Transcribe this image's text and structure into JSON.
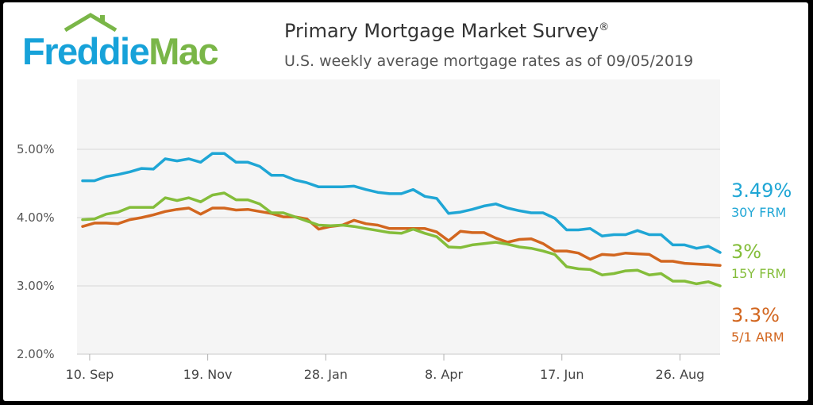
{
  "logo": {
    "part1": "Freddie",
    "part2": "Mac"
  },
  "header": {
    "title": "Primary Mortgage Market Survey",
    "title_mark": "®",
    "subtitle": "U.S. weekly average mortgage rates as of 09/05/2019"
  },
  "colors": {
    "blue": "#1fa6d5",
    "green": "#84bd3a",
    "orange": "#d2661f",
    "logo_blue": "#17a2d9",
    "logo_green": "#7ab648"
  },
  "chart_data": {
    "type": "line",
    "title": "Primary Mortgage Market Survey",
    "subtitle": "U.S. weekly average mortgage rates as of 09/05/2019",
    "xlabel": "",
    "ylabel": "",
    "ylim": [
      2.0,
      5.0
    ],
    "y_ticks": [
      "2.00%",
      "3.00%",
      "4.00%",
      "5.00%"
    ],
    "x_ticks": [
      "10. Sep",
      "19. Nov",
      "28. Jan",
      "8. Apr",
      "17. Jun",
      "26. Aug"
    ],
    "grid": true,
    "legend": "right-end labels",
    "x_start": "2018-09-06",
    "x_step": "weekly",
    "series": [
      {
        "name": "30Y FRM",
        "end_label": "3.49%",
        "color": "#1fa6d5",
        "values": [
          4.54,
          4.54,
          4.6,
          4.63,
          4.67,
          4.72,
          4.71,
          4.86,
          4.83,
          4.86,
          4.81,
          4.94,
          4.94,
          4.81,
          4.81,
          4.75,
          4.62,
          4.62,
          4.55,
          4.51,
          4.45,
          4.45,
          4.45,
          4.46,
          4.41,
          4.37,
          4.35,
          4.35,
          4.41,
          4.31,
          4.28,
          4.06,
          4.08,
          4.12,
          4.17,
          4.2,
          4.14,
          4.1,
          4.07,
          4.07,
          3.99,
          3.82,
          3.82,
          3.84,
          3.73,
          3.75,
          3.75,
          3.81,
          3.75,
          3.75,
          3.6,
          3.6,
          3.55,
          3.58,
          3.49
        ]
      },
      {
        "name": "15Y FRM",
        "end_label": "3%",
        "color": "#84bd3a",
        "values": [
          3.97,
          3.98,
          4.05,
          4.08,
          4.15,
          4.15,
          4.15,
          4.29,
          4.25,
          4.29,
          4.23,
          4.33,
          4.36,
          4.26,
          4.26,
          4.2,
          4.07,
          4.07,
          4.01,
          3.95,
          3.89,
          3.88,
          3.89,
          3.87,
          3.84,
          3.81,
          3.78,
          3.77,
          3.83,
          3.77,
          3.72,
          3.57,
          3.56,
          3.6,
          3.62,
          3.64,
          3.61,
          3.57,
          3.55,
          3.51,
          3.46,
          3.28,
          3.25,
          3.24,
          3.16,
          3.18,
          3.22,
          3.23,
          3.16,
          3.18,
          3.07,
          3.07,
          3.03,
          3.06,
          3.0
        ]
      },
      {
        "name": "5/1 ARM",
        "end_label": "3.3%",
        "color": "#d2661f",
        "values": [
          3.87,
          3.92,
          3.92,
          3.91,
          3.97,
          4.0,
          4.04,
          4.09,
          4.12,
          4.14,
          4.05,
          4.14,
          4.14,
          4.11,
          4.12,
          4.09,
          4.06,
          4.01,
          4.01,
          3.98,
          3.83,
          3.87,
          3.89,
          3.96,
          3.91,
          3.89,
          3.84,
          3.84,
          3.84,
          3.84,
          3.79,
          3.66,
          3.8,
          3.78,
          3.78,
          3.7,
          3.64,
          3.68,
          3.69,
          3.62,
          3.51,
          3.51,
          3.48,
          3.39,
          3.46,
          3.45,
          3.48,
          3.47,
          3.46,
          3.36,
          3.36,
          3.33,
          3.32,
          3.31,
          3.3
        ]
      }
    ]
  }
}
